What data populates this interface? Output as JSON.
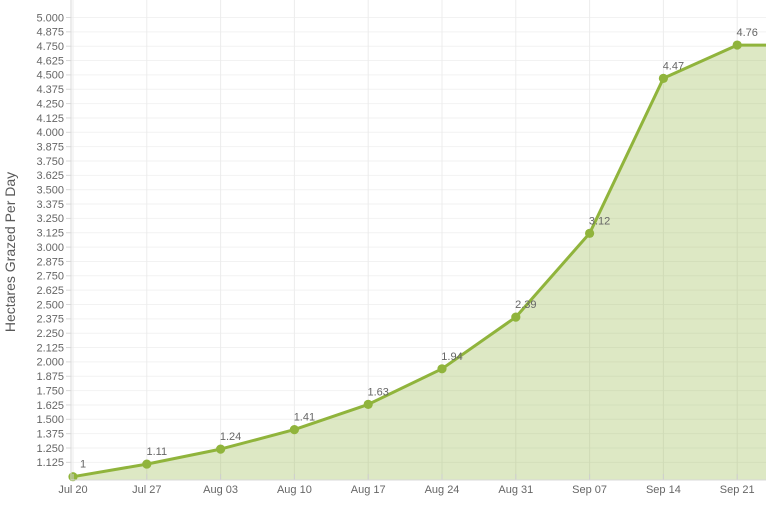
{
  "chart_data": {
    "type": "area",
    "title": "",
    "xlabel": "",
    "ylabel": "Hectares Grazed Per Day",
    "categories": [
      "Jul 20",
      "Jul 27",
      "Aug 03",
      "Aug 10",
      "Aug 17",
      "Aug 24",
      "Aug 31",
      "Sep 07",
      "Sep 14",
      "Sep 21"
    ],
    "values": [
      1,
      1.11,
      1.24,
      1.41,
      1.63,
      1.94,
      2.39,
      3.12,
      4.47,
      4.76
    ],
    "point_labels": [
      "1",
      "1.11",
      "1.24",
      "1.41",
      "1.63",
      "1.94",
      "2.39",
      "3.12",
      "4.47",
      "4.76"
    ],
    "y_ticks": [
      "5.000",
      "4.875",
      "4.750",
      "4.625",
      "4.500",
      "4.375",
      "4.250",
      "4.125",
      "4.000",
      "3.875",
      "3.750",
      "3.625",
      "3.500",
      "3.375",
      "3.250",
      "3.125",
      "3.000",
      "2.875",
      "2.750",
      "2.625",
      "2.500",
      "2.375",
      "2.250",
      "2.125",
      "2.000",
      "1.875",
      "1.750",
      "1.625",
      "1.500",
      "1.375",
      "1.250",
      "1.125"
    ],
    "y_tick_step": 0.125,
    "ylim": [
      0.97,
      5.15
    ],
    "grid": true,
    "legend": "none",
    "line_extends_flat_to_right_edge": true,
    "colors": {
      "line": "#90b43c",
      "fill": "rgba(144,180,60,0.30)",
      "marker": "#90b43c",
      "grid_horizontal": "#f2f2f2",
      "grid_vertical": "#ececec",
      "axis": "#d8d8d8",
      "x_tick": "#cfcfcf",
      "tick_label": "#666666",
      "point_label": "#666666",
      "axis_title": "#5a5a5a"
    }
  }
}
